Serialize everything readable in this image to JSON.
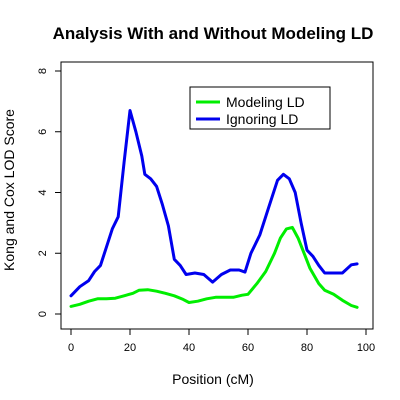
{
  "chart_data": {
    "type": "line",
    "title": "Analysis With and Without Modeling LD",
    "xlabel": "Position (cM)",
    "ylabel": "Kong and Cox LOD Score",
    "xlim": [
      0,
      100
    ],
    "ylim": [
      0,
      8
    ],
    "x_ticks": [
      0,
      20,
      40,
      60,
      80,
      100
    ],
    "y_ticks": [
      0,
      2,
      4,
      6,
      8
    ],
    "grid": false,
    "legend_position": "top-right",
    "series": [
      {
        "name": "Modeling LD",
        "color": "#00ee00",
        "points": [
          [
            0,
            0.25
          ],
          [
            3,
            0.32
          ],
          [
            6,
            0.42
          ],
          [
            9,
            0.5
          ],
          [
            12,
            0.5
          ],
          [
            15,
            0.52
          ],
          [
            18,
            0.6
          ],
          [
            21,
            0.68
          ],
          [
            23,
            0.78
          ],
          [
            26,
            0.8
          ],
          [
            29,
            0.75
          ],
          [
            32,
            0.68
          ],
          [
            35,
            0.6
          ],
          [
            38,
            0.48
          ],
          [
            40,
            0.38
          ],
          [
            43,
            0.42
          ],
          [
            46,
            0.5
          ],
          [
            49,
            0.55
          ],
          [
            52,
            0.55
          ],
          [
            55,
            0.55
          ],
          [
            58,
            0.62
          ],
          [
            60,
            0.65
          ],
          [
            63,
            1.0
          ],
          [
            66,
            1.4
          ],
          [
            69,
            2.0
          ],
          [
            71,
            2.5
          ],
          [
            73,
            2.8
          ],
          [
            75,
            2.85
          ],
          [
            77,
            2.5
          ],
          [
            79,
            2.0
          ],
          [
            81,
            1.5
          ],
          [
            84,
            1.0
          ],
          [
            86,
            0.78
          ],
          [
            89,
            0.65
          ],
          [
            92,
            0.45
          ],
          [
            95,
            0.28
          ],
          [
            97,
            0.22
          ]
        ]
      },
      {
        "name": "Ignoring LD",
        "color": "#0000ee",
        "points": [
          [
            0,
            0.6
          ],
          [
            3,
            0.9
          ],
          [
            6,
            1.1
          ],
          [
            8,
            1.4
          ],
          [
            10,
            1.6
          ],
          [
            12,
            2.2
          ],
          [
            14,
            2.8
          ],
          [
            16,
            3.2
          ],
          [
            18,
            5.0
          ],
          [
            20,
            6.7
          ],
          [
            22,
            6.0
          ],
          [
            24,
            5.2
          ],
          [
            25,
            4.6
          ],
          [
            27,
            4.45
          ],
          [
            29,
            4.2
          ],
          [
            31,
            3.6
          ],
          [
            33,
            2.9
          ],
          [
            35,
            1.8
          ],
          [
            37,
            1.6
          ],
          [
            39,
            1.3
          ],
          [
            42,
            1.35
          ],
          [
            45,
            1.3
          ],
          [
            48,
            1.05
          ],
          [
            51,
            1.3
          ],
          [
            54,
            1.45
          ],
          [
            57,
            1.45
          ],
          [
            59,
            1.38
          ],
          [
            61,
            2.0
          ],
          [
            64,
            2.6
          ],
          [
            67,
            3.5
          ],
          [
            70,
            4.4
          ],
          [
            72,
            4.6
          ],
          [
            74,
            4.45
          ],
          [
            76,
            4.0
          ],
          [
            78,
            3.0
          ],
          [
            80,
            2.1
          ],
          [
            82,
            1.9
          ],
          [
            84,
            1.6
          ],
          [
            86,
            1.35
          ],
          [
            89,
            1.35
          ],
          [
            92,
            1.35
          ],
          [
            95,
            1.62
          ],
          [
            97,
            1.65
          ]
        ]
      }
    ]
  }
}
